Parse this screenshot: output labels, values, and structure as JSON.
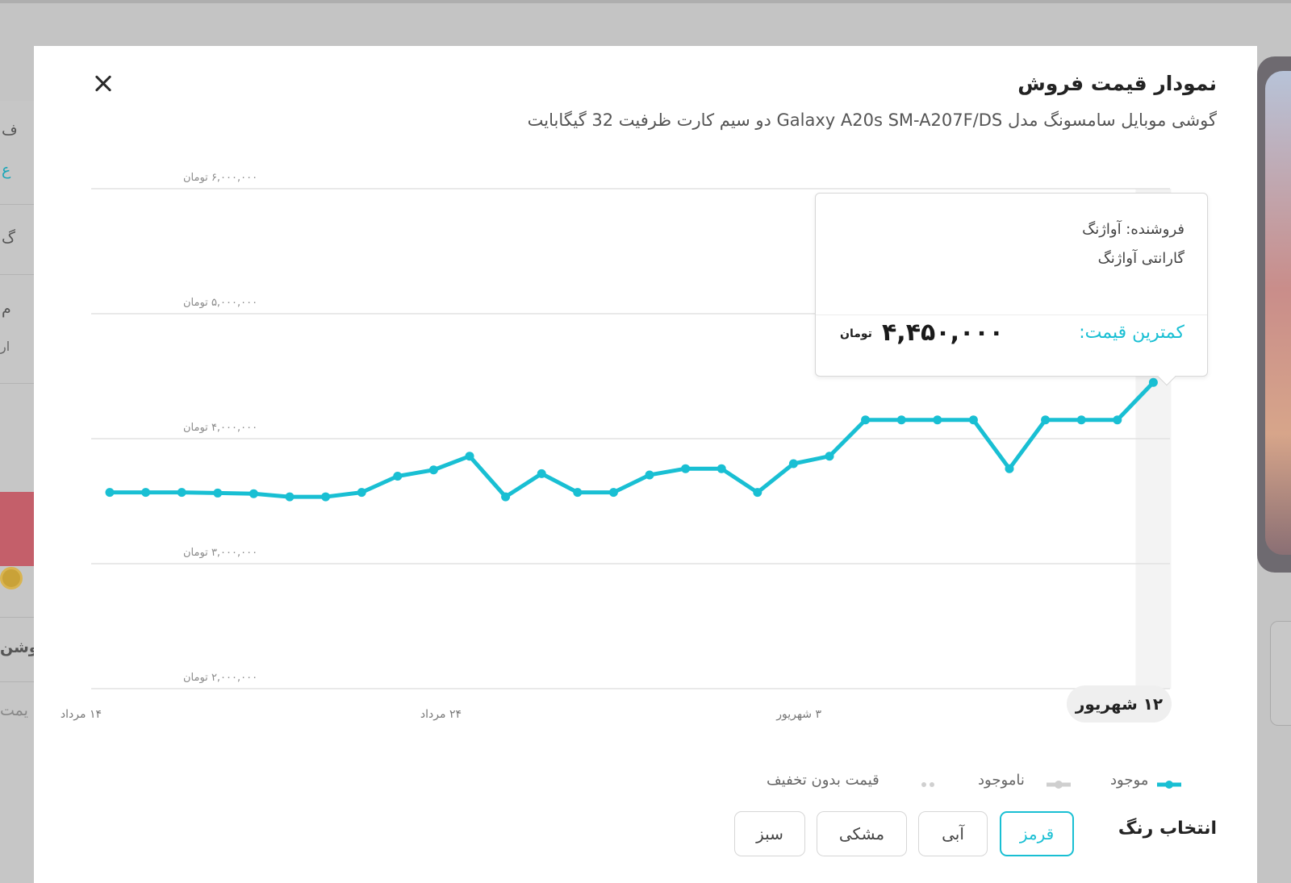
{
  "modal": {
    "title": "نمودار قیمت فروش",
    "subtitle": "گوشی موبایل سامسونگ مدل Galaxy A20s SM-A207F/DS دو سیم کارت ظرفیت 32 گیگابایت"
  },
  "colors": {
    "accent": "#19bfd3",
    "unavailable": "#cfcfcf",
    "no_discount": "#d0d0d0"
  },
  "tooltip": {
    "seller": "فروشنده: آواژنگ",
    "warranty": "گارانتی آواژنگ",
    "min_price_label": "کمترین قیمت:",
    "min_price_value": "۴,۴۵۰,۰۰۰",
    "currency": "تومان"
  },
  "selected_date": "۱۲ شهریور",
  "legend": {
    "available": "موجود",
    "unavailable": "ناموجود",
    "no_discount_price": "قیمت بدون تخفیف"
  },
  "color_selection": {
    "label": "انتخاب رنگ",
    "options": [
      "قرمز",
      "آبی",
      "مشکی",
      "سبز"
    ],
    "selected": "قرمز"
  },
  "background_fragments": {
    "f1": "ف",
    "f2": "ع",
    "f3": "گ",
    "f4": "م",
    "f5": "ار",
    "f6": "وشن",
    "f7": "یمت"
  },
  "chart_data": {
    "type": "line",
    "title": "",
    "xlabel": "",
    "ylabel": "",
    "ylim": [
      2000000,
      6000000
    ],
    "y_ticks": [
      {
        "value": 6000000,
        "label": "۶,۰۰۰,۰۰۰ تومان"
      },
      {
        "value": 5000000,
        "label": "۵,۰۰۰,۰۰۰ تومان"
      },
      {
        "value": 4000000,
        "label": "۴,۰۰۰,۰۰۰ تومان"
      },
      {
        "value": 3000000,
        "label": "۳,۰۰۰,۰۰۰ تومان"
      },
      {
        "value": 2000000,
        "label": "۲,۰۰۰,۰۰۰ تومان"
      }
    ],
    "x_ticks": [
      {
        "index": 0,
        "label": "۱۴ مرداد"
      },
      {
        "index": 10,
        "label": "۲۴ مرداد"
      },
      {
        "index": 20,
        "label": "۳ شهریور"
      }
    ],
    "highlight_index": 29,
    "grid": true,
    "series": [
      {
        "values": [
          3570000,
          3570000,
          3570000,
          3565000,
          3560000,
          3535000,
          3535000,
          3570000,
          3700000,
          3750000,
          3860000,
          3535000,
          3720000,
          3570000,
          3570000,
          3710000,
          3760000,
          3760000,
          3570000,
          3800000,
          3860000,
          4150000,
          4150000,
          4150000,
          4150000,
          3760000,
          4150000,
          4150000,
          4150000,
          4450000
        ]
      }
    ]
  }
}
